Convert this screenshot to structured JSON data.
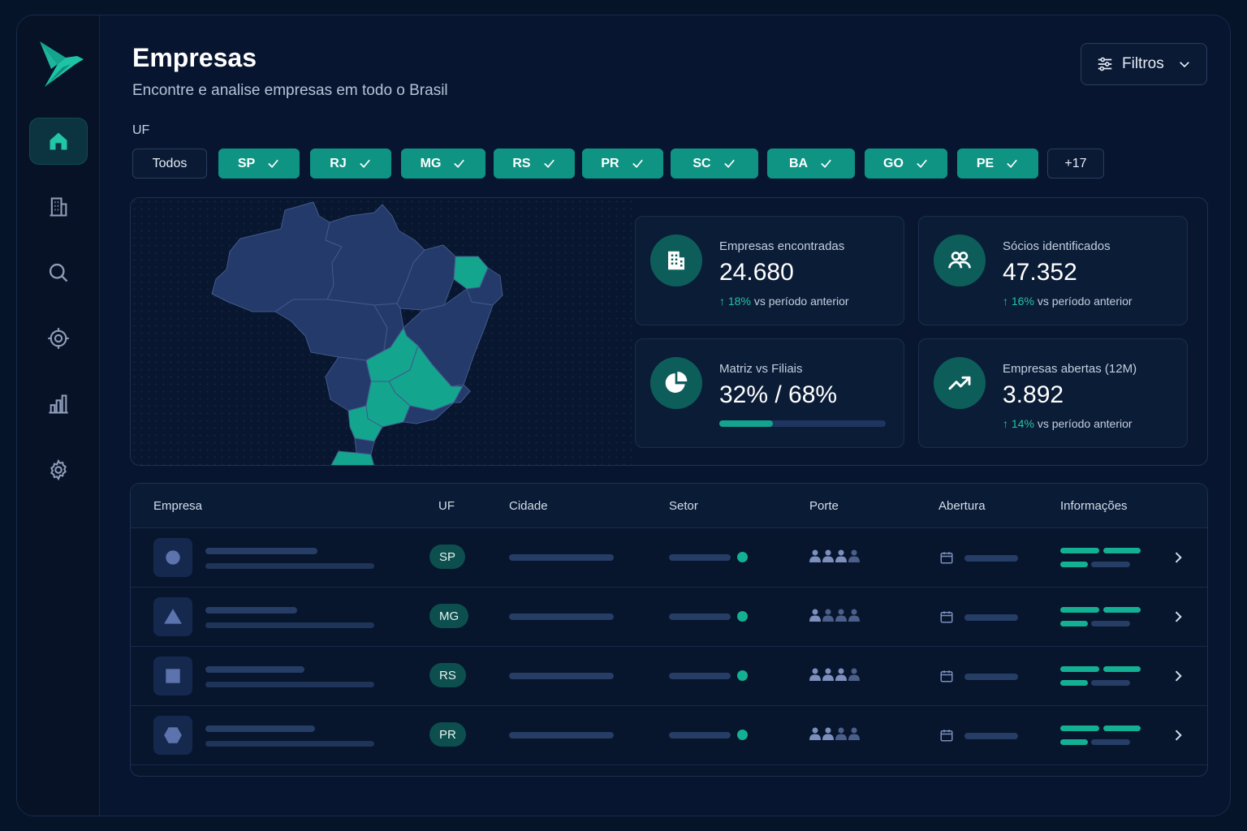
{
  "header": {
    "title": "Empresas",
    "subtitle": "Encontre e analise empresas em todo o Brasil",
    "filter_label": "Filtros"
  },
  "sidebar": {
    "items": [
      {
        "icon": "home-icon",
        "active": true
      },
      {
        "icon": "building-icon",
        "active": false
      },
      {
        "icon": "search-icon",
        "active": false
      },
      {
        "icon": "target-icon",
        "active": false
      },
      {
        "icon": "bar-chart-icon",
        "active": false
      },
      {
        "icon": "gear-icon",
        "active": false
      }
    ]
  },
  "uf_filter": {
    "label": "UF",
    "chips": [
      {
        "label": "Todos",
        "selected": false
      },
      {
        "label": "SP",
        "selected": true
      },
      {
        "label": "RJ",
        "selected": true
      },
      {
        "label": "MG",
        "selected": true
      },
      {
        "label": "RS",
        "selected": true
      },
      {
        "label": "PR",
        "selected": true
      },
      {
        "label": "SC",
        "selected": true
      },
      {
        "label": "BA",
        "selected": true
      },
      {
        "label": "GO",
        "selected": true
      },
      {
        "label": "PE",
        "selected": true
      },
      {
        "label": "+17",
        "selected": false
      }
    ]
  },
  "stats": [
    {
      "label": "Empresas encontradas",
      "value": "24.680",
      "delta": "18%",
      "delta_suffix": "vs período anterior",
      "icon": "building-icon"
    },
    {
      "label": "Sócios identificados",
      "value": "47.352",
      "delta": "16%",
      "delta_suffix": "vs período anterior",
      "icon": "users-icon"
    },
    {
      "label": "Matriz vs Filiais",
      "value": "32% / 68%",
      "progress": 0.32,
      "icon": "pie-chart-icon"
    },
    {
      "label": "Empresas abertas (12M)",
      "value": "3.892",
      "delta": "14%",
      "delta_suffix": "vs período anterior",
      "icon": "trending-up-icon"
    }
  ],
  "table": {
    "columns": [
      "Empresa",
      "UF",
      "Cidade",
      "Setor",
      "Porte",
      "Abertura",
      "Informações"
    ],
    "rows": [
      {
        "uf": "SP",
        "logo_shape": "circle",
        "porte_level": 3
      },
      {
        "uf": "MG",
        "logo_shape": "triangle",
        "porte_level": 1
      },
      {
        "uf": "RS",
        "logo_shape": "square",
        "porte_level": 3
      },
      {
        "uf": "PR",
        "logo_shape": "hexagon",
        "porte_level": 2
      }
    ]
  },
  "colors": {
    "accent": "#0f9484",
    "accent_bright": "#22c5a6",
    "background": "#071530",
    "map_state": "#233a6b",
    "map_highlight": "#14a58f"
  }
}
